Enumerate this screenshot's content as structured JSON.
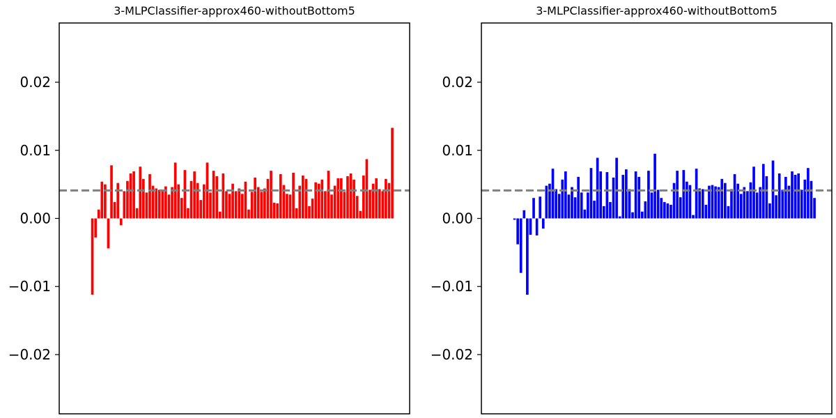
{
  "chart_data": [
    {
      "type": "bar",
      "title": "3-MLPClassifier-approx460-withoutBottom5",
      "xlabel": "",
      "ylabel": "",
      "ylim": [
        -0.0287,
        0.0287
      ],
      "yticks": [
        -0.02,
        -0.01,
        0.0,
        0.01,
        0.02
      ],
      "ytick_labels": [
        "−0.02",
        "−0.01",
        "0.00",
        "0.01",
        "0.02"
      ],
      "xticks": [],
      "bar_color": "#ff0000",
      "reference_line": {
        "value": 0.0041,
        "color": "#808080",
        "style": "dashed"
      },
      "values": [
        -0.0112,
        -0.0028,
        0.0013,
        0.0054,
        0.005,
        -0.0044,
        0.0078,
        0.0024,
        0.0052,
        -0.001,
        0.004,
        0.0055,
        0.0066,
        0.0069,
        0.0015,
        0.0076,
        0.0058,
        0.0038,
        0.0065,
        0.0048,
        0.0044,
        0.0042,
        0.0041,
        0.0047,
        0.0035,
        0.0046,
        0.0082,
        0.005,
        0.003,
        0.0071,
        0.0015,
        0.0055,
        0.0069,
        0.0052,
        0.0027,
        0.005,
        0.0082,
        0.0038,
        0.007,
        0.0062,
        0.001,
        0.0066,
        0.004,
        0.0036,
        0.0051,
        0.004,
        0.0044,
        0.0036,
        0.0054,
        0.0013,
        0.0039,
        0.006,
        0.0046,
        0.0039,
        0.0044,
        0.0058,
        0.007,
        0.0023,
        0.0022,
        0.0065,
        0.0049,
        0.0036,
        0.0035,
        0.0067,
        0.0015,
        0.0048,
        0.0063,
        0.0058,
        0.0018,
        0.0029,
        0.0053,
        0.0051,
        0.0057,
        0.004,
        0.007,
        0.0035,
        0.0048,
        0.0059,
        0.0059,
        0.0039,
        0.0062,
        0.0066,
        0.0057,
        0.0033,
        0.0011,
        0.0063,
        0.0087,
        0.0042,
        0.0051,
        0.0059,
        0.0043,
        0.004,
        0.0058,
        0.0052,
        0.0133
      ]
    },
    {
      "type": "bar",
      "title": "3-MLPClassifier-approx460-withoutBottom5",
      "xlabel": "",
      "ylabel": "",
      "ylim": [
        -0.0287,
        0.0287
      ],
      "yticks": [
        -0.02,
        -0.01,
        0.0,
        0.01,
        0.02
      ],
      "ytick_labels": [
        "−0.02",
        "−0.01",
        "0.00",
        "0.01",
        "0.02"
      ],
      "xticks": [],
      "bar_color": "#0000ff",
      "reference_line": {
        "value": 0.0041,
        "color": "#808080",
        "style": "dashed"
      },
      "values": [
        -0.0002,
        -0.0038,
        -0.008,
        0.0012,
        -0.0112,
        -0.0024,
        0.003,
        -0.0025,
        0.0032,
        -0.0015,
        0.0048,
        0.0051,
        0.0073,
        0.0043,
        0.0036,
        0.0057,
        0.0069,
        0.0035,
        0.0046,
        0.0031,
        0.0061,
        0.0038,
        0.0013,
        0.0038,
        0.0074,
        0.0026,
        0.0089,
        0.0069,
        0.0018,
        0.0068,
        0.0024,
        0.006,
        0.0089,
        0.0003,
        0.0064,
        0.0072,
        0.0043,
        0.0009,
        0.0069,
        0.0061,
        0.001,
        0.0025,
        0.007,
        0.0038,
        0.0095,
        0.0042,
        0.003,
        0.0024,
        0.0022,
        0.002,
        0.0052,
        0.007,
        0.0031,
        0.0071,
        0.0054,
        0.0049,
        0.0005,
        0.0073,
        0.0044,
        0.0043,
        0.002,
        0.0048,
        0.0049,
        0.0047,
        0.0046,
        0.0058,
        0.0052,
        0.0018,
        0.0043,
        0.0065,
        0.0051,
        0.0036,
        0.0046,
        0.004,
        0.0053,
        0.0076,
        0.0038,
        0.0046,
        0.008,
        0.0062,
        0.0022,
        0.0085,
        0.0034,
        0.0066,
        0.0042,
        0.0061,
        0.0048,
        0.0069,
        0.0064,
        0.0066,
        0.0042,
        0.0057,
        0.0074,
        0.0055,
        0.003
      ]
    }
  ]
}
